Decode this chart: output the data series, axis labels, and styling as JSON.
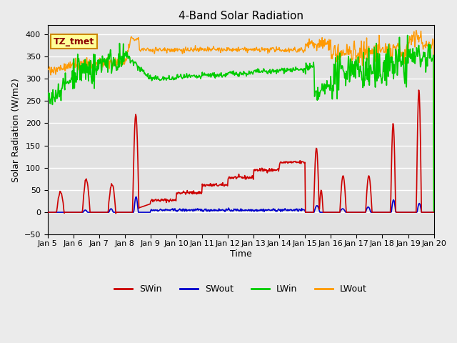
{
  "title": "4-Band Solar Radiation",
  "xlabel": "Time",
  "ylabel": "Solar Radiation (W/m2)",
  "ylim": [
    -50,
    420
  ],
  "background_color": "#ebebeb",
  "annotation_label": "TZ_tmet",
  "annotation_bg": "#ffff99",
  "annotation_border": "#cc8800",
  "colors": {
    "SWin": "#cc0000",
    "SWout": "#0000cc",
    "LWin": "#00cc00",
    "LWout": "#ff9900"
  },
  "x_tick_labels": [
    "Jan 5",
    "Jan 6",
    "Jan 7",
    "Jan 8",
    "Jan 9",
    "Jan 10",
    "Jan 11",
    "Jan 12",
    "Jan 13",
    "Jan 14",
    "Jan 15",
    "Jan 16",
    "Jan 17",
    "Jan 18",
    "Jan 19",
    "Jan 20"
  ],
  "n_days": 15,
  "pts_per_day": 48
}
